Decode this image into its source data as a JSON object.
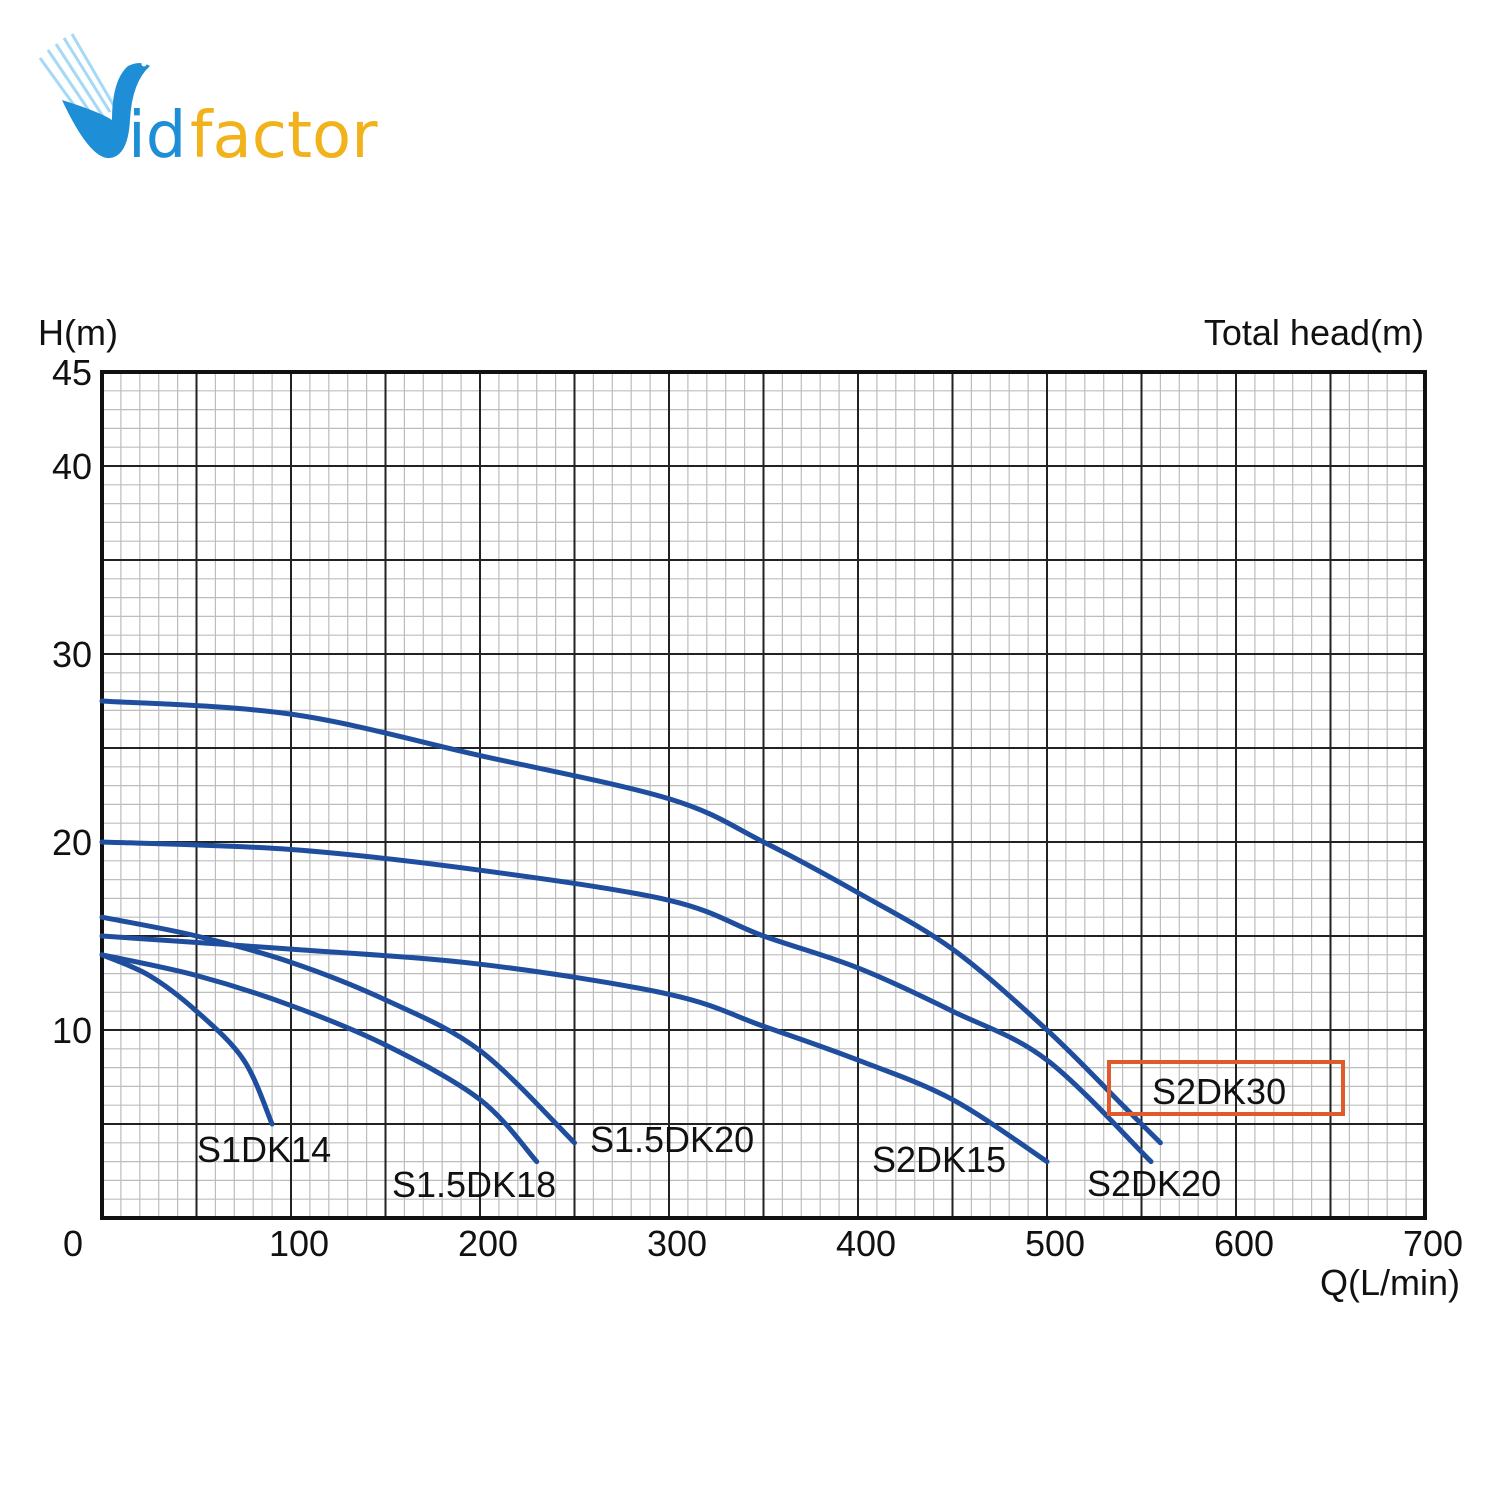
{
  "logo": {
    "text": "Vidfactor",
    "part1": "id",
    "part2": "factor",
    "colors": {
      "blue": "#1e8fd6",
      "yellow": "#f2b21c"
    }
  },
  "chart_data": {
    "type": "line",
    "title": "",
    "ylabel": "H(m)",
    "ylabel_right": "Total head(m)",
    "xlabel": "Q(L/min)",
    "xlim": [
      0,
      700
    ],
    "ylim": [
      0,
      45
    ],
    "x_ticks": [
      0,
      100,
      200,
      300,
      400,
      500,
      600,
      700
    ],
    "y_ticks": [
      0,
      10,
      20,
      30,
      40,
      45
    ],
    "x_major_step": 50,
    "x_minor_step": 10,
    "y_major_step": 5,
    "y_minor_step": 1,
    "grid": true,
    "line_color": "#1f4e9e",
    "highlight_color": "#e05a2b",
    "highlighted_series": "S2DK30",
    "series": [
      {
        "name": "S1DK14",
        "x": [
          0,
          25,
          50,
          75,
          90
        ],
        "y": [
          14,
          12.9,
          11,
          8.4,
          5
        ]
      },
      {
        "name": "S1.5DK18",
        "x": [
          0,
          50,
          100,
          150,
          200,
          230
        ],
        "y": [
          14,
          12.9,
          11.3,
          9.2,
          6.3,
          3
        ]
      },
      {
        "name": "S1.5DK20",
        "x": [
          0,
          50,
          100,
          150,
          200,
          250
        ],
        "y": [
          16,
          15,
          13.6,
          11.6,
          8.9,
          4
        ]
      },
      {
        "name": "S2DK15",
        "x": [
          0,
          100,
          200,
          300,
          350,
          400,
          450,
          500
        ],
        "y": [
          15,
          14.3,
          13.5,
          11.9,
          10.2,
          8.4,
          6.3,
          3
        ]
      },
      {
        "name": "S2DK20",
        "x": [
          0,
          100,
          200,
          300,
          350,
          400,
          450,
          500,
          555
        ],
        "y": [
          20,
          19.6,
          18.5,
          16.9,
          15,
          13.3,
          11,
          8.4,
          3
        ]
      },
      {
        "name": "S2DK30",
        "x": [
          0,
          100,
          200,
          300,
          350,
          400,
          450,
          500,
          540,
          560
        ],
        "y": [
          27.5,
          26.8,
          24.6,
          22.3,
          20,
          17.3,
          14.3,
          10,
          6,
          4
        ]
      }
    ]
  }
}
